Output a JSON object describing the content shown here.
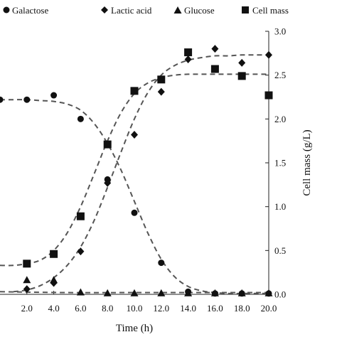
{
  "chart_data": {
    "type": "scatter",
    "title": "",
    "xlabel": "Time (h)",
    "ylabel_right": "Cell mass (g/L)",
    "x_ticks": [
      "2.0",
      "4.0",
      "6.0",
      "8.0",
      "10.0",
      "12.0",
      "14.0",
      "16.0",
      "18.0",
      "20.0"
    ],
    "x_tick_values": [
      2,
      4,
      6,
      8,
      10,
      12,
      14,
      16,
      18,
      20
    ],
    "xlim": [
      0,
      20
    ],
    "y_right_ticks": [
      "0.0",
      "0.5",
      "1.0",
      "1.5",
      "2.0",
      "2.5",
      "3.0"
    ],
    "y_right_tick_values": [
      0,
      0.5,
      1,
      1.5,
      2,
      2.5,
      3
    ],
    "y_right_lim": [
      0,
      3
    ],
    "grid": false,
    "legend_position": "top",
    "series": [
      {
        "name": "Galactose",
        "marker": "circle",
        "x": [
          0,
          2,
          4,
          6,
          8,
          10,
          12,
          14,
          16,
          18,
          20
        ],
        "y": [
          2.22,
          2.22,
          2.27,
          2.0,
          1.31,
          0.93,
          0.36,
          0.03,
          0.01,
          0.01,
          0.01
        ],
        "fit": [
          [
            0,
            2.22
          ],
          [
            1,
            2.22
          ],
          [
            2,
            2.22
          ],
          [
            3,
            2.21
          ],
          [
            4,
            2.2
          ],
          [
            5,
            2.17
          ],
          [
            6,
            2.1
          ],
          [
            7,
            1.95
          ],
          [
            8,
            1.72
          ],
          [
            9,
            1.42
          ],
          [
            10,
            1.06
          ],
          [
            11,
            0.7
          ],
          [
            12,
            0.4
          ],
          [
            13,
            0.2
          ],
          [
            14,
            0.09
          ],
          [
            15,
            0.04
          ],
          [
            16,
            0.02
          ],
          [
            17,
            0.01
          ],
          [
            18,
            0.01
          ],
          [
            19,
            0.01
          ],
          [
            20,
            0.01
          ]
        ]
      },
      {
        "name": "Lactic acid",
        "marker": "diamond",
        "x": [
          2,
          4,
          6,
          8,
          10,
          12,
          14,
          16,
          18,
          20
        ],
        "y": [
          0.06,
          0.13,
          0.49,
          1.27,
          1.82,
          2.31,
          2.68,
          2.8,
          2.64,
          2.73
        ],
        "fit": [
          [
            1,
            0.03
          ],
          [
            2,
            0.05
          ],
          [
            3,
            0.1
          ],
          [
            4,
            0.19
          ],
          [
            5,
            0.33
          ],
          [
            6,
            0.54
          ],
          [
            7,
            0.84
          ],
          [
            8,
            1.22
          ],
          [
            9,
            1.62
          ],
          [
            10,
            2.0
          ],
          [
            11,
            2.3
          ],
          [
            12,
            2.5
          ],
          [
            13,
            2.61
          ],
          [
            14,
            2.67
          ],
          [
            15,
            2.7
          ],
          [
            16,
            2.72
          ],
          [
            17,
            2.72
          ],
          [
            18,
            2.73
          ],
          [
            19,
            2.73
          ],
          [
            20,
            2.73
          ]
        ]
      },
      {
        "name": "Glucose",
        "marker": "triangle",
        "x": [
          2,
          4,
          6,
          8,
          10,
          12,
          14,
          16,
          18,
          20
        ],
        "y": [
          0.16,
          0.16,
          0.02,
          0.01,
          0.01,
          0.01,
          0.01,
          0.01,
          0.01,
          0.01
        ],
        "fit": [
          [
            0,
            0.03
          ],
          [
            5,
            0.02
          ],
          [
            10,
            0.02
          ],
          [
            15,
            0.02
          ],
          [
            20,
            0.02
          ]
        ]
      },
      {
        "name": "Cell mass",
        "marker": "square",
        "x": [
          2,
          4,
          6,
          8,
          10,
          12,
          14,
          16,
          18,
          20
        ],
        "y": [
          0.35,
          0.46,
          0.89,
          1.71,
          2.32,
          2.45,
          2.76,
          2.57,
          2.49,
          2.27
        ],
        "fit": [
          [
            0,
            0.33
          ],
          [
            1,
            0.33
          ],
          [
            2,
            0.35
          ],
          [
            3,
            0.39
          ],
          [
            4,
            0.5
          ],
          [
            5,
            0.7
          ],
          [
            6,
            1.0
          ],
          [
            7,
            1.37
          ],
          [
            8,
            1.75
          ],
          [
            9,
            2.07
          ],
          [
            10,
            2.29
          ],
          [
            11,
            2.41
          ],
          [
            12,
            2.47
          ],
          [
            13,
            2.5
          ],
          [
            14,
            2.51
          ],
          [
            15,
            2.51
          ],
          [
            16,
            2.51
          ],
          [
            17,
            2.51
          ],
          [
            18,
            2.51
          ],
          [
            19,
            2.51
          ],
          [
            20,
            2.51
          ]
        ]
      }
    ]
  }
}
